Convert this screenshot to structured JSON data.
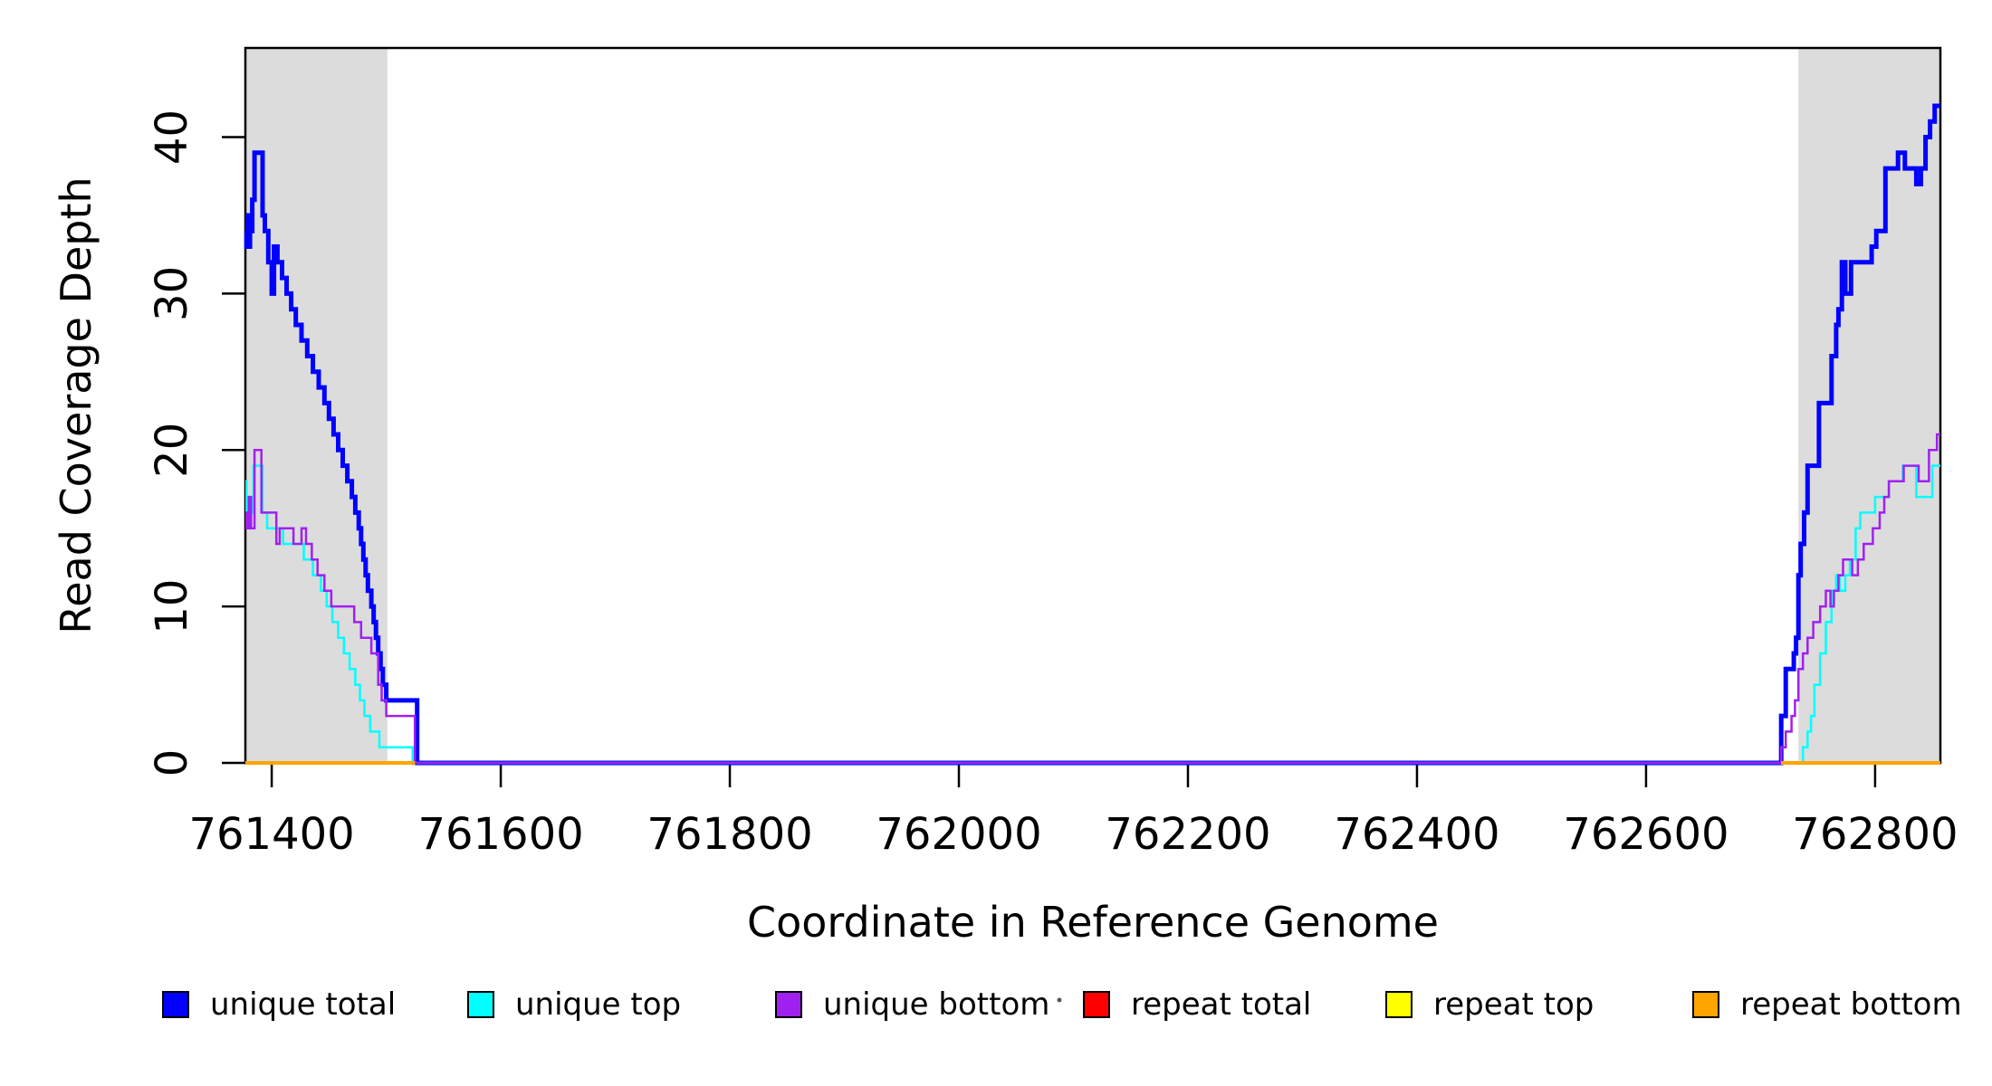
{
  "chart_data": {
    "type": "line",
    "title": "",
    "xlabel": "Coordinate in Reference Genome",
    "ylabel": "Read Coverage Depth",
    "xlim": [
      761377,
      762857
    ],
    "ylim": [
      0,
      45.7
    ],
    "x_ticks": [
      761400,
      761600,
      761800,
      762000,
      762200,
      762400,
      762600,
      762800
    ],
    "y_ticks": [
      0,
      10,
      20,
      30,
      40
    ],
    "grid": false,
    "legend_position": "bottom",
    "shade_color": "#DCDCDC",
    "shaded_regions": [
      {
        "x0": 761377,
        "x1": 761501
      },
      {
        "x0": 762733,
        "x1": 762857
      }
    ],
    "series": [
      {
        "name": "unique total",
        "color": "#0000FF",
        "width": 5,
        "points": [
          [
            761377,
            34
          ],
          [
            761378,
            33
          ],
          [
            761379,
            35
          ],
          [
            761380,
            33
          ],
          [
            761381,
            34
          ],
          [
            761383,
            36
          ],
          [
            761385,
            39
          ],
          [
            761392,
            35
          ],
          [
            761394,
            34
          ],
          [
            761397,
            32
          ],
          [
            761400,
            30
          ],
          [
            761402,
            33
          ],
          [
            761405,
            32
          ],
          [
            761409,
            31
          ],
          [
            761413,
            30
          ],
          [
            761417,
            29
          ],
          [
            761421,
            28
          ],
          [
            761426,
            27
          ],
          [
            761431,
            26
          ],
          [
            761436,
            25
          ],
          [
            761441,
            24
          ],
          [
            761446,
            23
          ],
          [
            761450,
            22
          ],
          [
            761454,
            21
          ],
          [
            761458,
            20
          ],
          [
            761462,
            19
          ],
          [
            761466,
            18
          ],
          [
            761470,
            17
          ],
          [
            761473,
            16
          ],
          [
            761476,
            15
          ],
          [
            761478,
            14
          ],
          [
            761480,
            13
          ],
          [
            761482,
            12
          ],
          [
            761484,
            11
          ],
          [
            761487,
            10
          ],
          [
            761489,
            9
          ],
          [
            761491,
            8
          ],
          [
            761493,
            7
          ],
          [
            761495,
            6
          ],
          [
            761497,
            5
          ],
          [
            761500,
            4
          ],
          [
            761527,
            0
          ],
          [
            762718,
            3
          ],
          [
            762722,
            6
          ],
          [
            762729,
            7
          ],
          [
            762731,
            8
          ],
          [
            762733,
            12
          ],
          [
            762735,
            14
          ],
          [
            762738,
            16
          ],
          [
            762741,
            19
          ],
          [
            762751,
            23
          ],
          [
            762762,
            26
          ],
          [
            762766,
            28
          ],
          [
            762768,
            29
          ],
          [
            762771,
            32
          ],
          [
            762774,
            30
          ],
          [
            762779,
            32
          ],
          [
            762797,
            33
          ],
          [
            762801,
            34
          ],
          [
            762809,
            38
          ],
          [
            762820,
            39
          ],
          [
            762826,
            38
          ],
          [
            762836,
            37
          ],
          [
            762840,
            38
          ],
          [
            762844,
            40
          ],
          [
            762848,
            41
          ],
          [
            762852,
            42
          ],
          [
            762857,
            42
          ]
        ]
      },
      {
        "name": "unique top",
        "color": "#00FFFF",
        "width": 2.5,
        "points": [
          [
            761377,
            18
          ],
          [
            761378,
            16
          ],
          [
            761380,
            17
          ],
          [
            761382,
            16
          ],
          [
            761384,
            19
          ],
          [
            761392,
            16
          ],
          [
            761396,
            15
          ],
          [
            761410,
            14
          ],
          [
            761428,
            13
          ],
          [
            761436,
            12
          ],
          [
            761443,
            11
          ],
          [
            761448,
            10
          ],
          [
            761453,
            9
          ],
          [
            761458,
            8
          ],
          [
            761463,
            7
          ],
          [
            761468,
            6
          ],
          [
            761473,
            5
          ],
          [
            761477,
            4
          ],
          [
            761481,
            3
          ],
          [
            761486,
            2
          ],
          [
            761494,
            1
          ],
          [
            761523,
            0
          ],
          [
            762737,
            1
          ],
          [
            762741,
            2
          ],
          [
            762744,
            3
          ],
          [
            762747,
            5
          ],
          [
            762752,
            7
          ],
          [
            762757,
            9
          ],
          [
            762762,
            11
          ],
          [
            762766,
            12
          ],
          [
            762769,
            11
          ],
          [
            762774,
            12
          ],
          [
            762778,
            13
          ],
          [
            762783,
            15
          ],
          [
            762787,
            16
          ],
          [
            762800,
            17
          ],
          [
            762812,
            18
          ],
          [
            762824,
            19
          ],
          [
            762836,
            17
          ],
          [
            762850,
            19
          ],
          [
            762857,
            19
          ]
        ]
      },
      {
        "name": "unique bottom",
        "color": "#A020F0",
        "width": 2.5,
        "points": [
          [
            761377,
            16
          ],
          [
            761378,
            15
          ],
          [
            761380,
            17
          ],
          [
            761382,
            15
          ],
          [
            761385,
            20
          ],
          [
            761391,
            16
          ],
          [
            761404,
            14
          ],
          [
            761407,
            15
          ],
          [
            761419,
            14
          ],
          [
            761426,
            15
          ],
          [
            761430,
            14
          ],
          [
            761435,
            13
          ],
          [
            761440,
            12
          ],
          [
            761446,
            11
          ],
          [
            761452,
            10
          ],
          [
            761472,
            9
          ],
          [
            761478,
            8
          ],
          [
            761487,
            7
          ],
          [
            761493,
            5
          ],
          [
            761496,
            4
          ],
          [
            761500,
            3
          ],
          [
            761525,
            0
          ],
          [
            762718,
            1
          ],
          [
            762722,
            2
          ],
          [
            762727,
            3
          ],
          [
            762730,
            4
          ],
          [
            762733,
            6
          ],
          [
            762737,
            7
          ],
          [
            762741,
            8
          ],
          [
            762746,
            9
          ],
          [
            762752,
            10
          ],
          [
            762757,
            11
          ],
          [
            762761,
            10
          ],
          [
            762764,
            11
          ],
          [
            762768,
            12
          ],
          [
            762772,
            13
          ],
          [
            762780,
            12
          ],
          [
            762785,
            13
          ],
          [
            762790,
            14
          ],
          [
            762798,
            15
          ],
          [
            762804,
            16
          ],
          [
            762808,
            17
          ],
          [
            762812,
            18
          ],
          [
            762825,
            19
          ],
          [
            762838,
            18
          ],
          [
            762847,
            20
          ],
          [
            762854,
            21
          ],
          [
            762857,
            21
          ]
        ]
      },
      {
        "name": "repeat total",
        "color": "#FF0000",
        "width": 3,
        "segments": [
          [
            [
              761377,
              0
            ],
            [
              761525,
              0
            ]
          ],
          [
            [
              762718,
              0
            ],
            [
              762857,
              0
            ]
          ]
        ]
      },
      {
        "name": "repeat top",
        "color": "#FFFF00",
        "width": 3,
        "segments": [
          [
            [
              761377,
              0
            ],
            [
              761525,
              0
            ]
          ],
          [
            [
              762718,
              0
            ],
            [
              762857,
              0
            ]
          ]
        ]
      },
      {
        "name": "repeat bottom",
        "color": "#FFA500",
        "width": 4,
        "segments": [
          [
            [
              761377,
              0
            ],
            [
              761525,
              0
            ]
          ],
          [
            [
              762718,
              0
            ],
            [
              762857,
              0
            ]
          ]
        ]
      }
    ],
    "legend": {
      "items": [
        {
          "label": "unique total",
          "color": "#0000FF"
        },
        {
          "label": "unique top",
          "color": "#00FFFF"
        },
        {
          "label": "unique bottom",
          "color": "#A020F0"
        },
        {
          "label": "repeat total",
          "color": "#FF0000"
        },
        {
          "label": "repeat top",
          "color": "#FFFF00"
        },
        {
          "label": "repeat bottom",
          "color": "#FFA500"
        }
      ]
    }
  }
}
